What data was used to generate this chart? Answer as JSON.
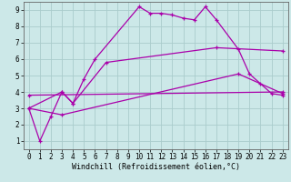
{
  "background_color": "#cce8e8",
  "grid_color": "#aacccc",
  "line_color": "#aa00aa",
  "xlabel": "Windchill (Refroidissement éolien,°C)",
  "xlim": [
    -0.5,
    23.5
  ],
  "ylim": [
    0.5,
    9.5
  ],
  "xticks": [
    0,
    1,
    2,
    3,
    4,
    5,
    6,
    7,
    8,
    9,
    10,
    11,
    12,
    13,
    14,
    15,
    16,
    17,
    18,
    19,
    20,
    21,
    22,
    23
  ],
  "yticks": [
    1,
    2,
    3,
    4,
    5,
    6,
    7,
    8,
    9
  ],
  "series1_x": [
    0,
    1,
    2,
    3,
    4,
    5,
    6,
    10,
    11,
    12,
    13,
    14,
    15,
    16,
    17,
    19,
    20,
    21,
    22,
    23
  ],
  "series1_y": [
    3.0,
    1.0,
    2.5,
    4.0,
    3.3,
    4.8,
    6.0,
    9.2,
    8.8,
    8.8,
    8.7,
    8.5,
    8.4,
    9.2,
    8.4,
    6.6,
    5.1,
    4.5,
    3.9,
    3.8
  ],
  "series2_x": [
    0,
    3,
    4,
    7,
    17,
    23
  ],
  "series2_y": [
    3.0,
    4.0,
    3.3,
    5.8,
    6.7,
    6.5
  ],
  "series3_x": [
    0,
    3,
    19,
    23
  ],
  "series3_y": [
    3.0,
    2.6,
    5.1,
    3.9
  ],
  "series4_x": [
    0,
    23
  ],
  "series4_y": [
    3.8,
    4.0
  ],
  "tick_fontsize": 5.5,
  "axis_fontsize": 6,
  "linewidth": 0.9,
  "marker": "+",
  "marker_size": 3.5,
  "markeredgewidth": 0.9
}
